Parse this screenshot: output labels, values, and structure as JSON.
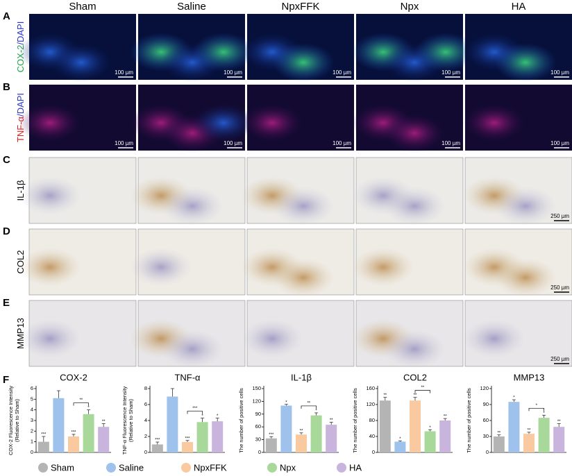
{
  "columns": [
    "Sham",
    "Saline",
    "NpxFFK",
    "Npx",
    "HA"
  ],
  "rows": [
    {
      "letter": "A",
      "label_parts": [
        {
          "text": "COX-2",
          "color": "#1fa84a"
        },
        {
          "text": "/DAPI",
          "color": "#2a36c8"
        }
      ],
      "scale_labels": [
        "100 µm",
        "100 µm",
        "100 µm",
        "100 µm",
        "100 µm"
      ]
    },
    {
      "letter": "B",
      "label_parts": [
        {
          "text": "TNF-α",
          "color": "#e02020"
        },
        {
          "text": "/DAPI",
          "color": "#2a36c8"
        }
      ],
      "scale_labels": [
        "100 µm",
        "100 µm",
        "100 µm",
        "100 µm",
        "100 µm"
      ]
    },
    {
      "letter": "C",
      "label_parts": [
        {
          "text": "IL-1β",
          "color": "#000000"
        }
      ],
      "scale_labels": [
        null,
        null,
        null,
        null,
        "250 µm"
      ]
    },
    {
      "letter": "D",
      "label_parts": [
        {
          "text": "COL2",
          "color": "#000000"
        }
      ],
      "scale_labels": [
        null,
        null,
        null,
        null,
        "250 µm"
      ]
    },
    {
      "letter": "E",
      "label_parts": [
        {
          "text": "MMP13",
          "color": "#000000"
        }
      ],
      "scale_labels": [
        null,
        null,
        null,
        null,
        "250 µm"
      ]
    }
  ],
  "figure_letter": "F",
  "legend": {
    "labels": [
      "Sham",
      "Saline",
      "NpxFFK",
      "Npx",
      "HA"
    ],
    "colors": [
      "#b4b4b4",
      "#9ec2ec",
      "#f9c9a0",
      "#a8d99a",
      "#c8b4dc"
    ]
  },
  "chart_data": [
    {
      "type": "bar",
      "title": "COX-2",
      "ylabel": [
        "COX-2 Fluorescence Intensity",
        "(Relative to Sham)"
      ],
      "values": [
        1,
        5.1,
        1.5,
        3.6,
        2.4
      ],
      "errors": [
        0.5,
        0.7,
        0.2,
        0.4,
        0.3
      ],
      "ylim": [
        0,
        6
      ],
      "yticks": [
        0,
        1,
        2,
        3,
        4,
        5,
        6
      ],
      "significance": [
        "***",
        null,
        "***",
        "*",
        "**"
      ],
      "bracket_label": "**"
    },
    {
      "type": "bar",
      "title": "TNF-α",
      "ylabel": [
        "TNF-α Fluorescence Intensity",
        "(Relative to Sham)"
      ],
      "values": [
        1,
        7,
        1.3,
        3.8,
        3.9
      ],
      "errors": [
        0.3,
        1,
        0.2,
        0.5,
        0.4
      ],
      "ylim": [
        0,
        8
      ],
      "yticks": [
        0,
        2,
        4,
        6,
        8
      ],
      "significance": [
        "***",
        null,
        "***",
        "*",
        "*"
      ],
      "bracket_label": "***"
    },
    {
      "type": "bar",
      "title": "IL-1β",
      "ylabel": [
        "The number of positive cells"
      ],
      "values": [
        33,
        110,
        42,
        87,
        65
      ],
      "errors": [
        4,
        3,
        4,
        6,
        6
      ],
      "ylim": [
        0,
        150
      ],
      "yticks": [
        0,
        30,
        60,
        90,
        120,
        150
      ],
      "significance": [
        "***",
        "*",
        "**",
        "*",
        "**"
      ],
      "bracket_label": "**"
    },
    {
      "type": "bar",
      "title": "COL2",
      "ylabel": [
        "The number of positive cells"
      ],
      "values": [
        130,
        27,
        130,
        53,
        80
      ],
      "errors": [
        8,
        2,
        8,
        4,
        5
      ],
      "ylim": [
        0,
        160
      ],
      "yticks": [
        0,
        40,
        80,
        120,
        160
      ],
      "significance": [
        "**",
        "*",
        "**",
        "*",
        "**"
      ],
      "bracket_label": "**"
    },
    {
      "type": "bar",
      "title": "MMP13",
      "ylabel": [
        "The number of positive cells"
      ],
      "values": [
        30,
        95,
        35,
        65,
        48
      ],
      "errors": [
        3,
        4,
        3,
        5,
        6
      ],
      "ylim": [
        0,
        120
      ],
      "yticks": [
        0,
        30,
        60,
        90,
        120
      ],
      "significance": [
        "**",
        "*",
        "**",
        "*",
        "**"
      ],
      "bracket_label": "*"
    }
  ]
}
